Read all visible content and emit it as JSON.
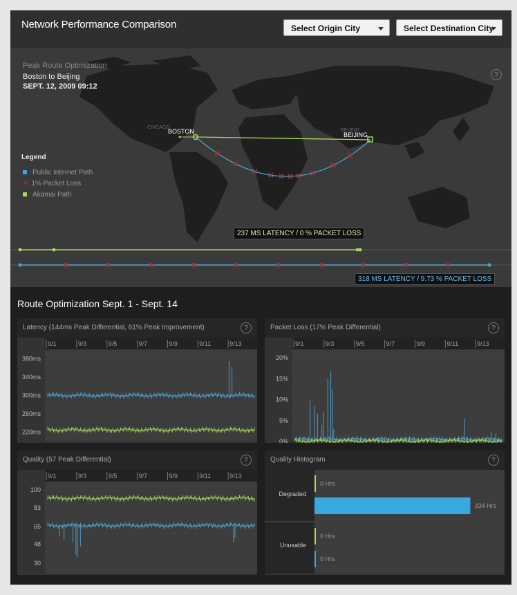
{
  "header": {
    "title": "Network Performance Comparison",
    "origin_select": "Select Origin City",
    "destination_select": "Select Destination City"
  },
  "map": {
    "subtitle": "Peak Route Optimization",
    "route": "Boston to Beijing",
    "date": "SEPT. 12, 2009 09:12",
    "help": "?",
    "city_labels": {
      "chicago": "CHICAGO",
      "boston": "BOSTON",
      "beijing_small": "BEIJING",
      "beijing": "BEIJING"
    },
    "legend": {
      "title": "Legend",
      "items": [
        {
          "label": "Public Internet Path",
          "color": "#3aa8e0"
        },
        {
          "label": "1% Packet Loss",
          "color": "#b03030"
        },
        {
          "label": "Akamai Path",
          "color": "#a6d85a"
        }
      ]
    },
    "akamai_stats": "237 MS LATENCY / 0 % PACKET LOSS",
    "public_stats": "318 MS LATENCY / 9.73 % PACKET LOSS"
  },
  "section_title": "Route Optimization Sept. 1 - Sept. 14",
  "colors": {
    "public": "#4aa6d6",
    "akamai": "#a6d85a",
    "loss": "#a03a3a"
  },
  "panels": {
    "latency": {
      "title": "Latency (144ms Peak Differential, 61% Peak Improvement)",
      "help": "?",
      "chart_data": {
        "type": "line",
        "x_ticks": [
          "9/1",
          "9/3",
          "9/5",
          "9/7",
          "9/9",
          "9/11",
          "9/13"
        ],
        "y_ticks": [
          "380ms",
          "340ms",
          "300ms",
          "260ms",
          "220ms"
        ],
        "ylim": [
          200,
          400
        ],
        "series": [
          {
            "color": "#4aa6d6",
            "baseline": 300,
            "spikes": [
              [
                0.88,
                375
              ],
              [
                0.89,
                362
              ]
            ]
          },
          {
            "color": "#a6d85a",
            "baseline": 225,
            "spikes": []
          }
        ]
      }
    },
    "packet_loss": {
      "title": "Packet Loss (17% Peak Differential)",
      "help": "?",
      "chart_data": {
        "type": "line",
        "x_ticks": [
          "9/1",
          "9/3",
          "9/5",
          "9/7",
          "9/9",
          "9/11",
          "9/13"
        ],
        "y_ticks": [
          "20%",
          "15%",
          "10%",
          "5%",
          "0%"
        ],
        "ylim": [
          0,
          22
        ],
        "series": [
          {
            "color": "#4aa6d6",
            "baseline": 0.5,
            "spikes": [
              [
                0.07,
                9.8
              ],
              [
                0.09,
                8.5
              ],
              [
                0.11,
                6.7
              ],
              [
                0.13,
                4.0
              ],
              [
                0.14,
                7.0
              ],
              [
                0.16,
                15.0
              ],
              [
                0.17,
                16.8
              ],
              [
                0.18,
                12.5
              ],
              [
                0.19,
                3.0
              ],
              [
                0.82,
                5.5
              ],
              [
                0.95,
                2.2
              ],
              [
                0.97,
                2.0
              ]
            ]
          },
          {
            "color": "#a6d85a",
            "baseline": 0.1,
            "spikes": []
          }
        ]
      }
    },
    "quality": {
      "title": "Quality (57 Peak Differential)",
      "help": "?",
      "chart_data": {
        "type": "line",
        "x_ticks": [
          "9/1",
          "9/3",
          "9/5",
          "9/7",
          "9/9",
          "9/11",
          "9/13"
        ],
        "y_ticks": [
          "100",
          "83",
          "65",
          "48",
          "30"
        ],
        "ylim": [
          20,
          108
        ],
        "series": [
          {
            "color": "#a6d85a",
            "baseline": 92,
            "spikes": []
          },
          {
            "color": "#4aa6d6",
            "baseline": 66,
            "spikes": [
              [
                0.06,
                56
              ],
              [
                0.08,
                52
              ],
              [
                0.12,
                50
              ],
              [
                0.14,
                38
              ],
              [
                0.145,
                35
              ],
              [
                0.16,
                46
              ],
              [
                0.9,
                50
              ],
              [
                0.91,
                54
              ]
            ]
          }
        ]
      }
    },
    "histogram": {
      "title": "Quality Histogram",
      "help": "?",
      "chart_data": {
        "type": "bar",
        "groups": [
          {
            "name": "Degraded",
            "bars": [
              {
                "value": 0,
                "label": "0 Hrs",
                "color": "#a6d85a"
              },
              {
                "value": 334,
                "label": "334 Hrs",
                "color": "#3aa8e0"
              }
            ]
          },
          {
            "name": "Unusable",
            "bars": [
              {
                "value": 0,
                "label": "0 Hrs",
                "color": "#a6d85a"
              },
              {
                "value": 0,
                "label": "0 Hrs",
                "color": "#3aa8e0"
              }
            ]
          }
        ],
        "xlim": [
          0,
          400
        ]
      }
    }
  }
}
